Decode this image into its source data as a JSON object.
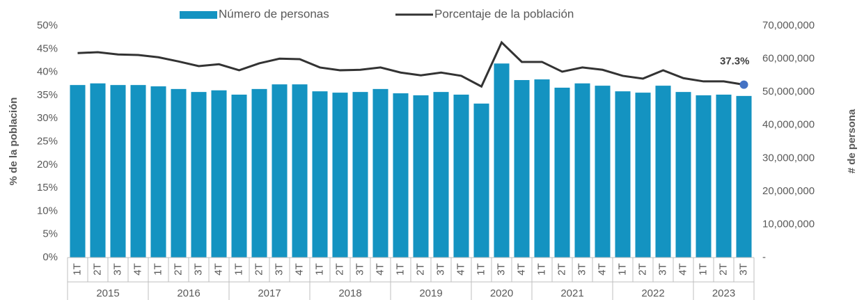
{
  "chart_data": {
    "type": "bar-line",
    "groups": [
      {
        "label": "2015",
        "categories": [
          "1T",
          "2T",
          "3T",
          "4T"
        ]
      },
      {
        "label": "2016",
        "categories": [
          "1T",
          "2T",
          "3T",
          "4T"
        ]
      },
      {
        "label": "2017",
        "categories": [
          "1T",
          "2T",
          "3T",
          "4T"
        ]
      },
      {
        "label": "2018",
        "categories": [
          "1T",
          "2T",
          "3T",
          "4T"
        ]
      },
      {
        "label": "2019",
        "categories": [
          "1T",
          "2T",
          "3T",
          "4T"
        ]
      },
      {
        "label": "2020",
        "categories": [
          "1T",
          "3T",
          "4T"
        ]
      },
      {
        "label": "2021",
        "categories": [
          "1T",
          "2T",
          "3T",
          "4T"
        ]
      },
      {
        "label": "2022",
        "categories": [
          "1T",
          "2T",
          "3T",
          "4T"
        ]
      },
      {
        "label": "2023",
        "categories": [
          "1T",
          "2T",
          "3T"
        ]
      }
    ],
    "series": [
      {
        "name": "Número de personas",
        "type": "bar",
        "axis": "y2",
        "color": "#1493c1",
        "values": [
          52100000,
          52600000,
          52100000,
          52100000,
          51700000,
          50900000,
          50000000,
          50500000,
          49200000,
          50900000,
          52300000,
          52300000,
          50200000,
          49800000,
          50000000,
          50900000,
          49600000,
          49000000,
          50000000,
          49200000,
          46500000,
          58600000,
          53600000,
          53800000,
          51300000,
          52600000,
          51900000,
          50200000,
          49800000,
          51900000,
          50000000,
          49000000,
          49200000,
          48800000
        ]
      },
      {
        "name": "Porcentaje de la población",
        "type": "line",
        "axis": "y",
        "color": "#333333",
        "values": [
          44.1,
          44.3,
          43.8,
          43.7,
          43.2,
          42.3,
          41.3,
          41.7,
          40.4,
          41.9,
          42.9,
          42.8,
          41.0,
          40.4,
          40.5,
          41.0,
          39.9,
          39.3,
          39.9,
          39.2,
          36.9,
          46.4,
          42.2,
          42.2,
          40.1,
          41.0,
          40.5,
          39.2,
          38.6,
          40.4,
          38.7,
          38.0,
          38.0,
          37.3
        ],
        "value_labels": [
          null,
          null,
          null,
          null,
          null,
          null,
          null,
          null,
          null,
          null,
          null,
          null,
          null,
          null,
          null,
          null,
          null,
          null,
          null,
          null,
          null,
          null,
          null,
          null,
          null,
          null,
          null,
          null,
          null,
          null,
          null,
          null,
          null,
          "37.3%"
        ],
        "marker_color": "#4472c4"
      }
    ],
    "ylabel": "% de la población",
    "y2label": "# de persona",
    "ylim": [
      0,
      50
    ],
    "yticks": [
      {
        "value": 0,
        "label": "0%"
      },
      {
        "value": 5,
        "label": "5%"
      },
      {
        "value": 10,
        "label": "10%"
      },
      {
        "value": 15,
        "label": "15%"
      },
      {
        "value": 20,
        "label": "20%"
      },
      {
        "value": 25,
        "label": "25%"
      },
      {
        "value": 30,
        "label": "30%"
      },
      {
        "value": 35,
        "label": "35%"
      },
      {
        "value": 40,
        "label": "40%"
      },
      {
        "value": 45,
        "label": "45%"
      },
      {
        "value": 50,
        "label": "50%"
      }
    ],
    "y2lim": [
      0,
      70000000
    ],
    "y2ticks": [
      {
        "value": 0,
        "label": "-"
      },
      {
        "value": 10000000,
        "label": "10,000,000"
      },
      {
        "value": 20000000,
        "label": "20,000,000"
      },
      {
        "value": 30000000,
        "label": "30,000,000"
      },
      {
        "value": 40000000,
        "label": "40,000,000"
      },
      {
        "value": 50000000,
        "label": "50,000,000"
      },
      {
        "value": 60000000,
        "label": "60,000,000"
      },
      {
        "value": 70000000,
        "label": "70,000,000"
      }
    ],
    "legend": "top"
  }
}
